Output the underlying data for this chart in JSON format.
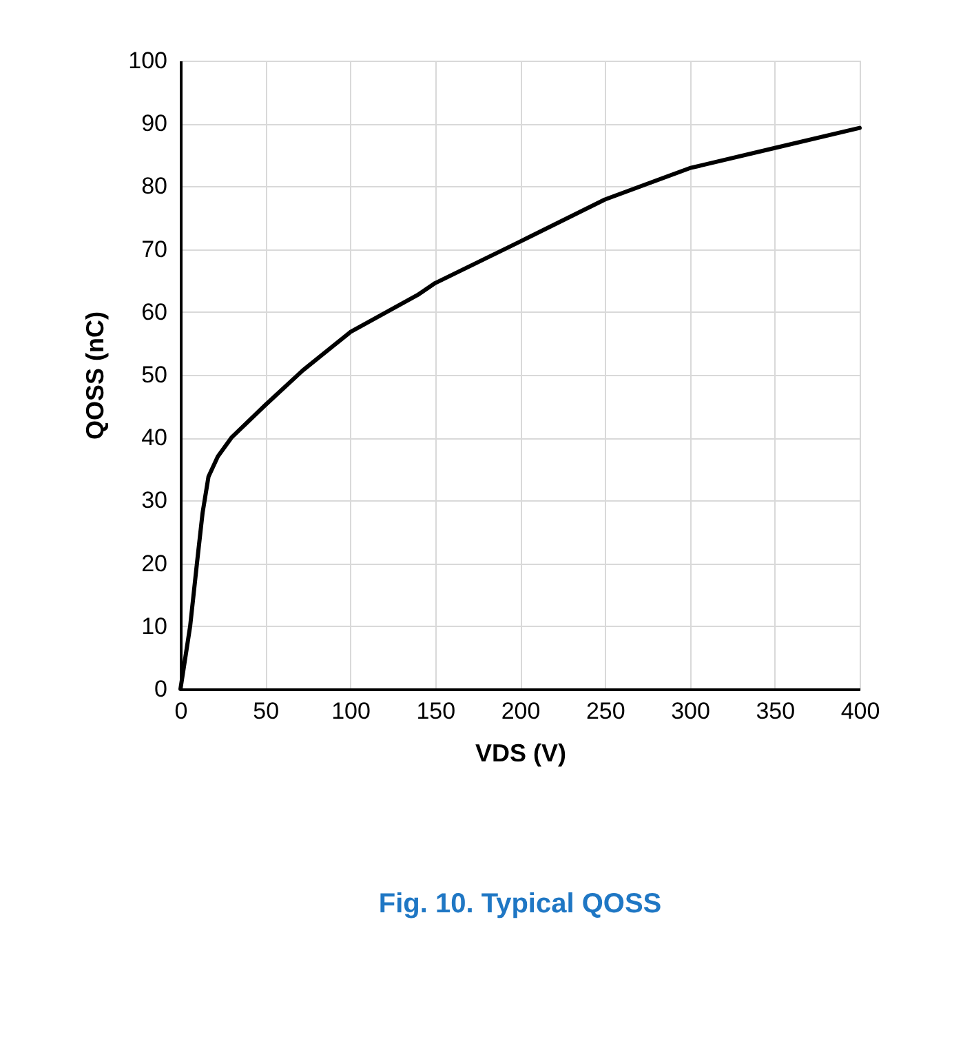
{
  "chart_data": {
    "type": "line",
    "title": "Fig. 10. Typical QOSS",
    "xlabel": "VDS (V)",
    "ylabel": "QOSS (nC)",
    "x": [
      0,
      5.7,
      9.7,
      13,
      16.5,
      22,
      30,
      50,
      72,
      100,
      139.6,
      150,
      200,
      250,
      300,
      350,
      400
    ],
    "series": [
      {
        "color": "#000000",
        "values": [
          0,
          10,
          20,
          28,
          33.8,
          37,
          40,
          45.2,
          50.7,
          56.8,
          62.7,
          64.6,
          71.2,
          77.9,
          82.9,
          86.1,
          89.3
        ]
      }
    ],
    "xlim": [
      0,
      400
    ],
    "xticks": [
      0,
      50,
      100,
      150,
      200,
      250,
      300,
      350,
      400
    ],
    "ylim": [
      0,
      100
    ],
    "yticks": [
      0,
      10,
      20,
      30,
      40,
      50,
      60,
      70,
      80,
      90,
      100
    ],
    "grid": true,
    "marker": "none",
    "line_style": "solid"
  }
}
